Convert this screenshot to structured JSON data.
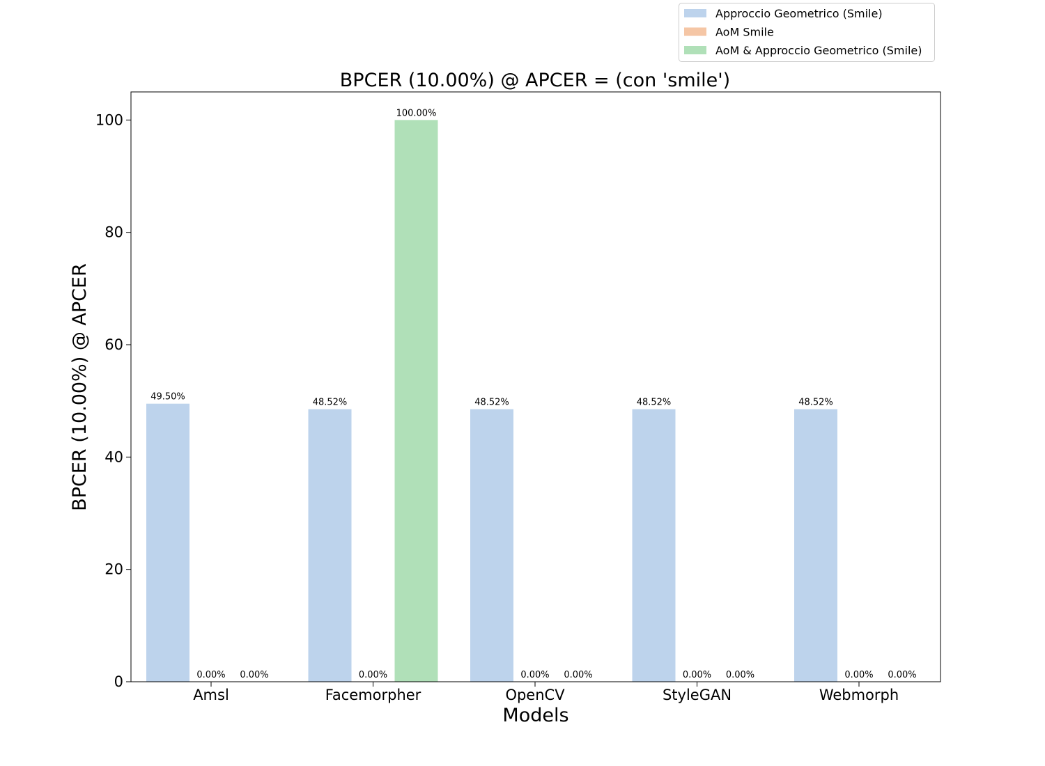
{
  "chart_data": {
    "type": "bar",
    "title": "BPCER (10.00%) @ APCER = (con 'smile')",
    "xlabel": "Models",
    "ylabel": "BPCER (10.00%) @ APCER",
    "categories": [
      "Amsl",
      "Facemorpher",
      "OpenCV",
      "StyleGAN",
      "Webmorph"
    ],
    "ylim": [
      0,
      105
    ],
    "yticks": [
      0,
      20,
      40,
      60,
      80,
      100
    ],
    "grid": false,
    "legend_position": "top-right",
    "series": [
      {
        "name": "Approccio Geometrico (Smile)",
        "color": "#bdd3ec",
        "values": [
          49.5,
          48.52,
          48.52,
          48.52,
          48.52
        ],
        "labels": [
          "49.50%",
          "48.52%",
          "48.52%",
          "48.52%",
          "48.52%"
        ]
      },
      {
        "name": "AoM Smile",
        "color": "#f5c6a5",
        "values": [
          0,
          0,
          0,
          0,
          0
        ],
        "labels": [
          "0.00%",
          "0.00%",
          "0.00%",
          "0.00%",
          "0.00%"
        ]
      },
      {
        "name": "AoM & Approccio Geometrico (Smile)",
        "color": "#b0e0b8",
        "values": [
          0,
          100,
          0,
          0,
          0
        ],
        "labels": [
          "0.00%",
          "100.00%",
          "0.00%",
          "0.00%",
          "0.00%"
        ]
      }
    ]
  }
}
